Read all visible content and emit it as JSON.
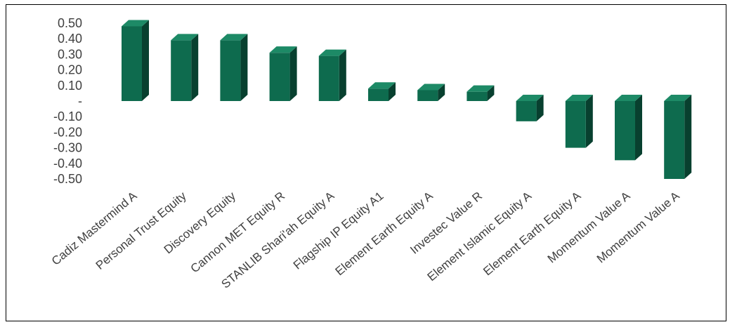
{
  "chart_data": {
    "type": "bar",
    "style": "3d-column",
    "colors": {
      "front": "#0e6b4e",
      "top": "#1d8a66",
      "side": "#08402f"
    },
    "categories": [
      "Cadiz Mastermind A",
      "Personal Trust Equity",
      "Discovery Equity",
      "Cannon MET Equity R",
      "STANLIB Shari'ah Equity A",
      "Flagship IP Equity A1",
      "Element Earth Equity A",
      "Investec Value R",
      "Element Islamic Equity A",
      "Element Earth Equity A",
      "Momentum Value A",
      "Momentum Value A"
    ],
    "values": [
      0.48,
      0.39,
      0.39,
      0.31,
      0.29,
      0.08,
      0.07,
      0.06,
      -0.13,
      -0.3,
      -0.38,
      -0.5
    ],
    "ylim": [
      -0.5,
      0.5
    ],
    "yticks": [
      0.5,
      0.4,
      0.3,
      0.2,
      0.1,
      0.0,
      -0.1,
      -0.2,
      -0.3,
      -0.4,
      -0.5
    ],
    "ytick_labels": [
      "0.50",
      "0.40",
      "0.30",
      "0.20",
      "0.10",
      "-",
      "-0.10",
      "-0.20",
      "-0.30",
      "-0.40",
      "-0.50"
    ],
    "grid": false,
    "legend": false,
    "title": "",
    "xlabel": "",
    "ylabel": ""
  }
}
